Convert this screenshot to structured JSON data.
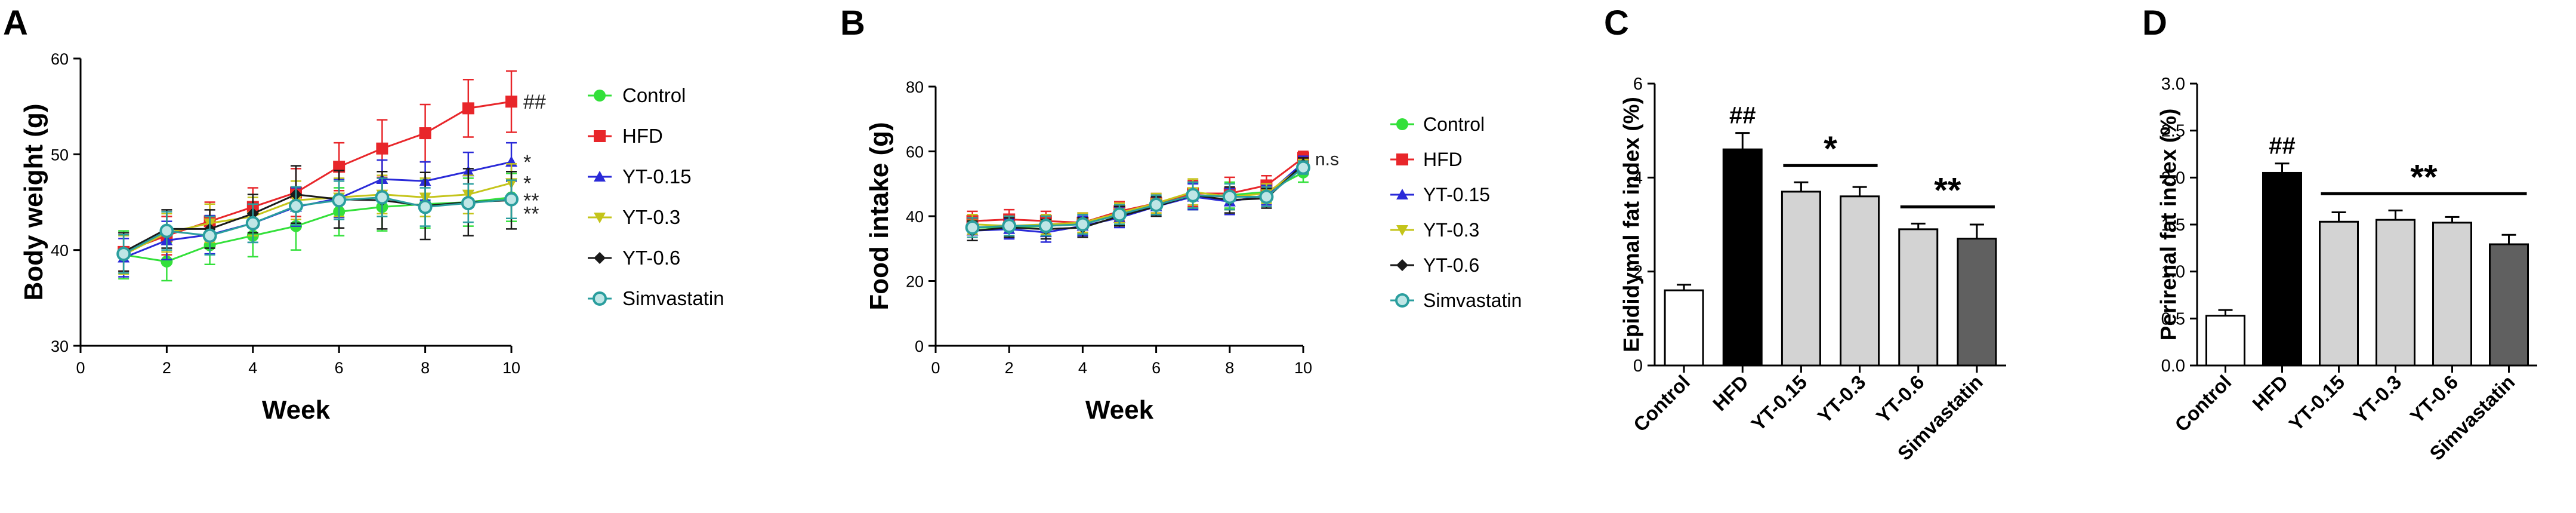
{
  "chart_data": [
    {
      "panel": "A",
      "type": "line",
      "xlabel": "Week",
      "ylabel": "Body weight (g)",
      "xlim": [
        0,
        10
      ],
      "ylim": [
        30,
        60
      ],
      "xticks": [
        0,
        2,
        4,
        6,
        8,
        10
      ],
      "yticks": [
        30,
        40,
        50,
        60
      ],
      "x": [
        1,
        2,
        3,
        4,
        5,
        6,
        7,
        8,
        9,
        10
      ],
      "legend_position": "right",
      "series": [
        {
          "name": "Control",
          "color": "#33e03a",
          "marker": "circle",
          "values": [
            39.5,
            38.8,
            40.5,
            41.5,
            42.5,
            44.0,
            44.5,
            44.8,
            45.0,
            45.5
          ],
          "errors": [
            2.5,
            2.0,
            2.0,
            2.2,
            2.5,
            2.5,
            2.5,
            2.5,
            2.5,
            2.5
          ]
        },
        {
          "name": "HFD",
          "color": "#e8262a",
          "marker": "square",
          "values": [
            39.8,
            41.5,
            43.0,
            44.5,
            46.0,
            48.7,
            50.6,
            52.2,
            54.8,
            55.5
          ],
          "errors": [
            2.0,
            2.0,
            2.0,
            2.0,
            2.5,
            2.5,
            3.0,
            3.0,
            3.0,
            3.2
          ]
        },
        {
          "name": "YT-0.15",
          "color": "#2a2ad8",
          "marker": "triangle-up",
          "values": [
            39.2,
            41.0,
            41.6,
            42.8,
            44.5,
            45.4,
            47.4,
            47.2,
            48.2,
            49.2
          ],
          "errors": [
            2.0,
            2.0,
            2.0,
            2.0,
            2.0,
            2.0,
            2.0,
            2.0,
            2.0,
            2.0
          ]
        },
        {
          "name": "YT-0.3",
          "color": "#c4c41a",
          "marker": "triangle-down",
          "values": [
            39.5,
            41.8,
            42.8,
            43.5,
            45.2,
            45.5,
            45.8,
            45.5,
            45.8,
            47.0
          ],
          "errors": [
            2.0,
            2.0,
            2.0,
            2.0,
            2.0,
            2.0,
            2.0,
            2.0,
            2.0,
            2.0
          ]
        },
        {
          "name": "YT-0.6",
          "color": "#1a1a1a",
          "marker": "diamond",
          "values": [
            39.8,
            42.2,
            42.2,
            43.8,
            45.8,
            45.3,
            45.2,
            44.6,
            45.0,
            45.2
          ],
          "errors": [
            2.0,
            2.0,
            2.0,
            2.0,
            3.0,
            3.0,
            3.0,
            3.5,
            3.5,
            3.0
          ]
        },
        {
          "name": "Simvastatin",
          "color": "#2a9e9e",
          "marker": "circle-open",
          "values": [
            39.6,
            42.0,
            41.5,
            42.8,
            44.6,
            45.2,
            45.5,
            44.5,
            44.9,
            45.3
          ],
          "errors": [
            2.0,
            2.0,
            2.0,
            2.0,
            2.0,
            2.0,
            2.0,
            2.0,
            2.0,
            2.0
          ]
        }
      ],
      "annotations": [
        {
          "text": "##",
          "series": "HFD"
        },
        {
          "text": "*",
          "series": "YT-0.15"
        },
        {
          "text": "*",
          "series": "YT-0.3"
        },
        {
          "text": "**",
          "series": "YT-0.6"
        },
        {
          "text": "**",
          "series": "Simvastatin"
        }
      ]
    },
    {
      "panel": "B",
      "type": "line",
      "xlabel": "Week",
      "ylabel": "Food intake (g)",
      "xlim": [
        0,
        10
      ],
      "ylim": [
        0,
        80
      ],
      "xticks": [
        0,
        2,
        4,
        6,
        8,
        10
      ],
      "yticks": [
        0,
        20,
        40,
        60,
        80
      ],
      "x": [
        1,
        2,
        3,
        4,
        5,
        6,
        7,
        8,
        9,
        10
      ],
      "legend_position": "right",
      "series": [
        {
          "name": "Control",
          "color": "#33e03a",
          "marker": "circle",
          "values": [
            36.5,
            36.5,
            37.0,
            37.5,
            40.5,
            43.5,
            46.0,
            46.5,
            47.5,
            53.5
          ],
          "errors": [
            3.0,
            3.0,
            3.0,
            3.0,
            3.0,
            3.0,
            4.0,
            4.0,
            3.0,
            3.0
          ]
        },
        {
          "name": "HFD",
          "color": "#e8262a",
          "marker": "square",
          "values": [
            38.5,
            39.0,
            38.5,
            38.0,
            41.5,
            44.0,
            47.0,
            47.0,
            49.5,
            58.0
          ],
          "errors": [
            3.0,
            3.0,
            3.0,
            3.0,
            3.0,
            3.0,
            4.0,
            5.0,
            3.0,
            2.0
          ]
        },
        {
          "name": "YT-0.15",
          "color": "#2a2ad8",
          "marker": "triangle-up",
          "values": [
            35.5,
            36.0,
            35.0,
            37.0,
            39.5,
            43.0,
            46.0,
            44.5,
            46.5,
            56.5
          ],
          "errors": [
            3.0,
            3.0,
            3.0,
            3.0,
            3.0,
            3.0,
            4.0,
            4.0,
            3.0,
            2.0
          ]
        },
        {
          "name": "YT-0.3",
          "color": "#c4c41a",
          "marker": "triangle-down",
          "values": [
            37.5,
            37.0,
            37.5,
            38.0,
            41.0,
            44.0,
            47.5,
            46.0,
            47.0,
            55.5
          ],
          "errors": [
            3.0,
            3.0,
            3.0,
            3.0,
            3.0,
            3.0,
            4.0,
            4.0,
            3.0,
            2.0
          ]
        },
        {
          "name": "YT-0.6",
          "color": "#1a1a1a",
          "marker": "diamond",
          "values": [
            35.5,
            36.5,
            36.0,
            36.5,
            40.0,
            43.0,
            46.5,
            45.0,
            45.5,
            56.0
          ],
          "errors": [
            3.0,
            3.0,
            3.0,
            3.0,
            3.0,
            3.0,
            4.0,
            4.0,
            3.0,
            2.0
          ]
        },
        {
          "name": "Simvastatin",
          "color": "#2a9e9e",
          "marker": "circle-open",
          "values": [
            36.5,
            37.0,
            37.0,
            37.5,
            40.5,
            43.5,
            46.5,
            46.0,
            46.0,
            55.0
          ],
          "errors": [
            3.0,
            3.0,
            3.0,
            3.0,
            3.0,
            3.0,
            4.0,
            4.0,
            3.0,
            2.0
          ]
        }
      ],
      "annotations": [
        {
          "text": "n.s",
          "series": "HFD"
        }
      ]
    },
    {
      "panel": "C",
      "type": "bar",
      "ylabel": "Epididymal fat index (%)",
      "ylim": [
        0,
        6
      ],
      "yticks": [
        0,
        2,
        4,
        6
      ],
      "categories": [
        "Control",
        "HFD",
        "YT-0.15",
        "YT-0.3",
        "YT-0.6",
        "Simvastatin"
      ],
      "values": [
        1.6,
        4.6,
        3.7,
        3.6,
        2.9,
        2.7
      ],
      "errors": [
        0.12,
        0.35,
        0.2,
        0.2,
        0.12,
        0.3
      ],
      "bar_colors": [
        "#ffffff",
        "#000000",
        "#d3d3d3",
        "#d3d3d3",
        "#d3d3d3",
        "#606060"
      ],
      "annotations": [
        {
          "text": "##",
          "category": "HFD"
        },
        {
          "text": "*",
          "span": [
            "YT-0.15",
            "YT-0.3"
          ]
        },
        {
          "text": "**",
          "span": [
            "YT-0.6",
            "Simvastatin"
          ]
        }
      ]
    },
    {
      "panel": "D",
      "type": "bar",
      "ylabel": "Perirenal fat index (%)",
      "ylim": [
        0,
        3.0
      ],
      "yticks": [
        0.0,
        0.5,
        1.0,
        1.5,
        2.0,
        2.5,
        3.0
      ],
      "categories": [
        "Control",
        "HFD",
        "YT-0.15",
        "YT-0.3",
        "YT-0.6",
        "Simvastatin"
      ],
      "values": [
        0.53,
        2.05,
        1.53,
        1.55,
        1.52,
        1.29
      ],
      "errors": [
        0.06,
        0.1,
        0.1,
        0.1,
        0.06,
        0.1
      ],
      "bar_colors": [
        "#ffffff",
        "#000000",
        "#d3d3d3",
        "#d3d3d3",
        "#d3d3d3",
        "#606060"
      ],
      "annotations": [
        {
          "text": "##",
          "category": "HFD"
        },
        {
          "text": "**",
          "span": [
            "YT-0.15",
            "Simvastatin"
          ]
        }
      ]
    }
  ]
}
